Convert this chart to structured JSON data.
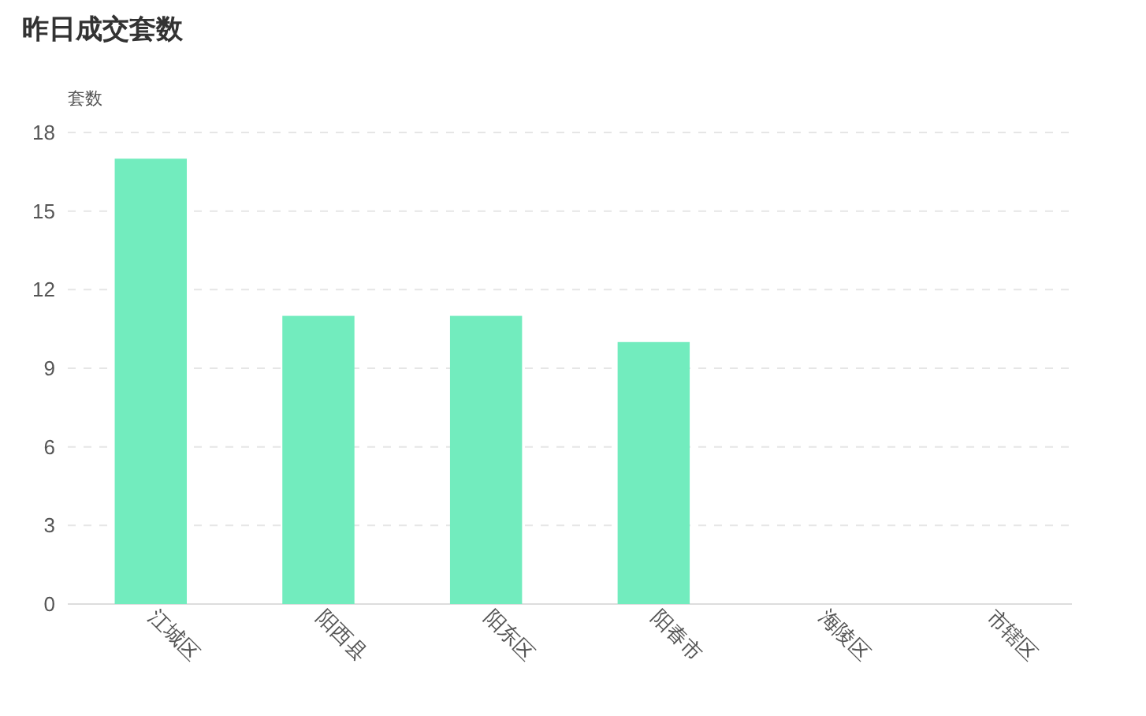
{
  "chart_data": {
    "type": "bar",
    "title": "昨日成交套数",
    "ylabel": "套数",
    "categories": [
      "江城区",
      "阳西县",
      "阳东区",
      "阳春市",
      "海陵区",
      "市辖区"
    ],
    "values": [
      17,
      11,
      11,
      10,
      0,
      0
    ],
    "color": "#72ecbe",
    "ylim": [
      0,
      18
    ],
    "yticks": [
      0,
      3,
      6,
      9,
      12,
      15,
      18
    ],
    "grid": "y"
  }
}
